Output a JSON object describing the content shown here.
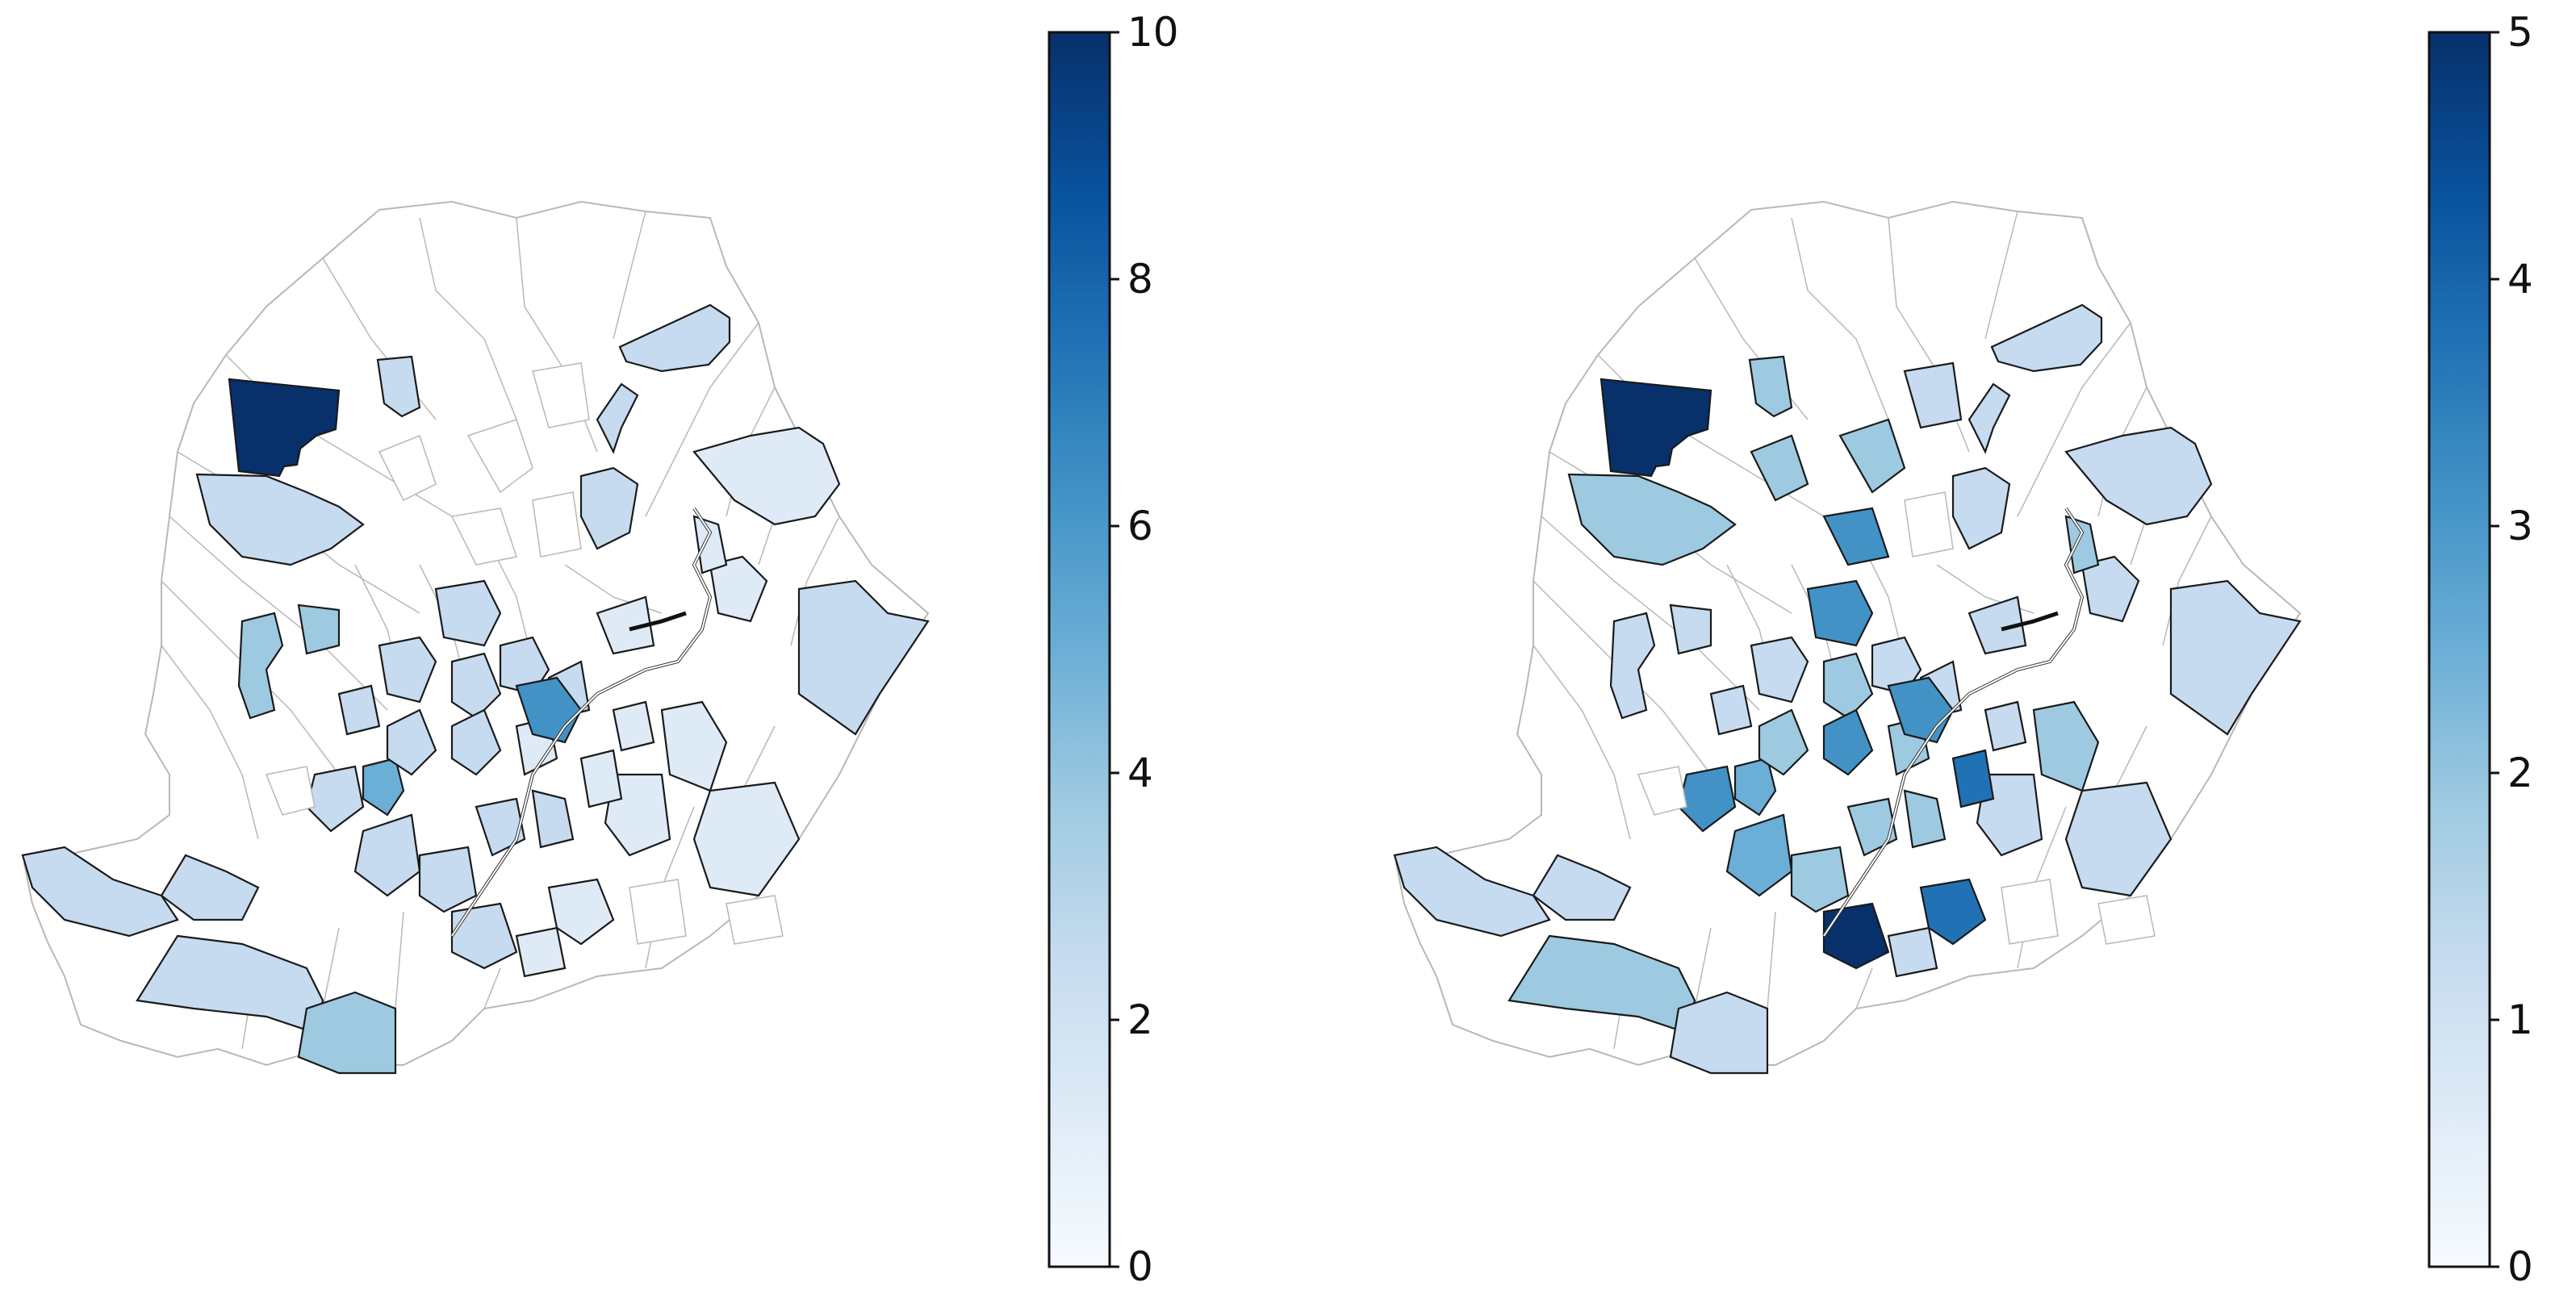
{
  "colors": {
    "ramp": [
      "#f7fbff",
      "#deebf7",
      "#c6dbef",
      "#9ecae1",
      "#6baed6",
      "#4292c6",
      "#2171b5",
      "#08519c",
      "#08306b"
    ],
    "unfilled_border": "#b8b8b8",
    "filled_border": "#1a1a1a"
  },
  "maps": [
    {
      "name": "left",
      "colorbar": {
        "min": 0,
        "max": 10,
        "ticks": [
          "0",
          "2",
          "4",
          "6",
          "8",
          "10"
        ]
      },
      "districts": [
        {
          "v": 10
        },
        {
          "v": 3
        },
        {
          "v": 2
        },
        {
          "v": 2
        },
        {
          "v": 1.5
        },
        {
          "v": 3
        },
        {
          "v": 2.5
        },
        {
          "v": 4
        },
        {
          "v": 4
        },
        {
          "v": 2
        },
        {
          "v": 5
        },
        {
          "v": 3
        },
        {
          "v": 3
        },
        {
          "v": 4
        },
        {
          "v": 2
        },
        {
          "v": 2
        },
        {
          "v": 2
        },
        {
          "v": 2
        },
        {
          "v": 3
        },
        {
          "v": 2
        },
        {
          "v": 1.5
        },
        {
          "v": 1.5
        },
        {
          "v": 1.5
        },
        {
          "v": 1
        },
        {
          "v": 1
        },
        {
          "v": 1
        },
        {
          "v": 2
        },
        {
          "v": 3
        },
        {
          "v": 2
        },
        {
          "v": 2
        },
        {
          "v": 2
        },
        {
          "v": 1
        },
        {
          "v": 2
        },
        {
          "v": 1
        },
        {
          "v": 3
        },
        {
          "v": 1.5
        },
        {
          "v": 2.5
        },
        {
          "v": 6
        },
        {
          "v": 2
        },
        {
          "v": 1
        },
        {
          "v": 1
        },
        {
          "v": 0
        },
        {
          "v": 0
        },
        {
          "v": 0
        },
        {
          "v": 0
        },
        {
          "v": 0
        },
        {
          "v": 0
        },
        {
          "v": 0
        },
        {
          "v": 0
        }
      ]
    },
    {
      "name": "right",
      "colorbar": {
        "min": 0,
        "max": 5,
        "ticks": [
          "0",
          "1",
          "2",
          "3",
          "4",
          "5"
        ]
      },
      "districts": [
        {
          "v": 5
        },
        {
          "v": 2
        },
        {
          "v": 1.5
        },
        {
          "v": 2
        },
        {
          "v": 1
        },
        {
          "v": 1
        },
        {
          "v": 1.5
        },
        {
          "v": 1
        },
        {
          "v": 1
        },
        {
          "v": 1.5
        },
        {
          "v": 2.5
        },
        {
          "v": 1.5
        },
        {
          "v": 2
        },
        {
          "v": 1.5
        },
        {
          "v": 1
        },
        {
          "v": 3
        },
        {
          "v": 1.5
        },
        {
          "v": 2
        },
        {
          "v": 1.5
        },
        {
          "v": 1
        },
        {
          "v": 1
        },
        {
          "v": 1.5
        },
        {
          "v": 2
        },
        {
          "v": 2
        },
        {
          "v": 1
        },
        {
          "v": 1
        },
        {
          "v": 3
        },
        {
          "v": 2.5
        },
        {
          "v": 2
        },
        {
          "v": 2
        },
        {
          "v": 2
        },
        {
          "v": 3.5
        },
        {
          "v": 5
        },
        {
          "v": 4
        },
        {
          "v": 3
        },
        {
          "v": 2
        },
        {
          "v": 2
        },
        {
          "v": 3
        },
        {
          "v": 1
        },
        {
          "v": 1
        },
        {
          "v": 1
        },
        {
          "v": 2
        },
        {
          "v": 2
        },
        {
          "v": 1
        },
        {
          "v": 3
        },
        {
          "v": 0
        },
        {
          "v": 0
        },
        {
          "v": 0
        },
        {
          "v": 0
        }
      ]
    }
  ]
}
